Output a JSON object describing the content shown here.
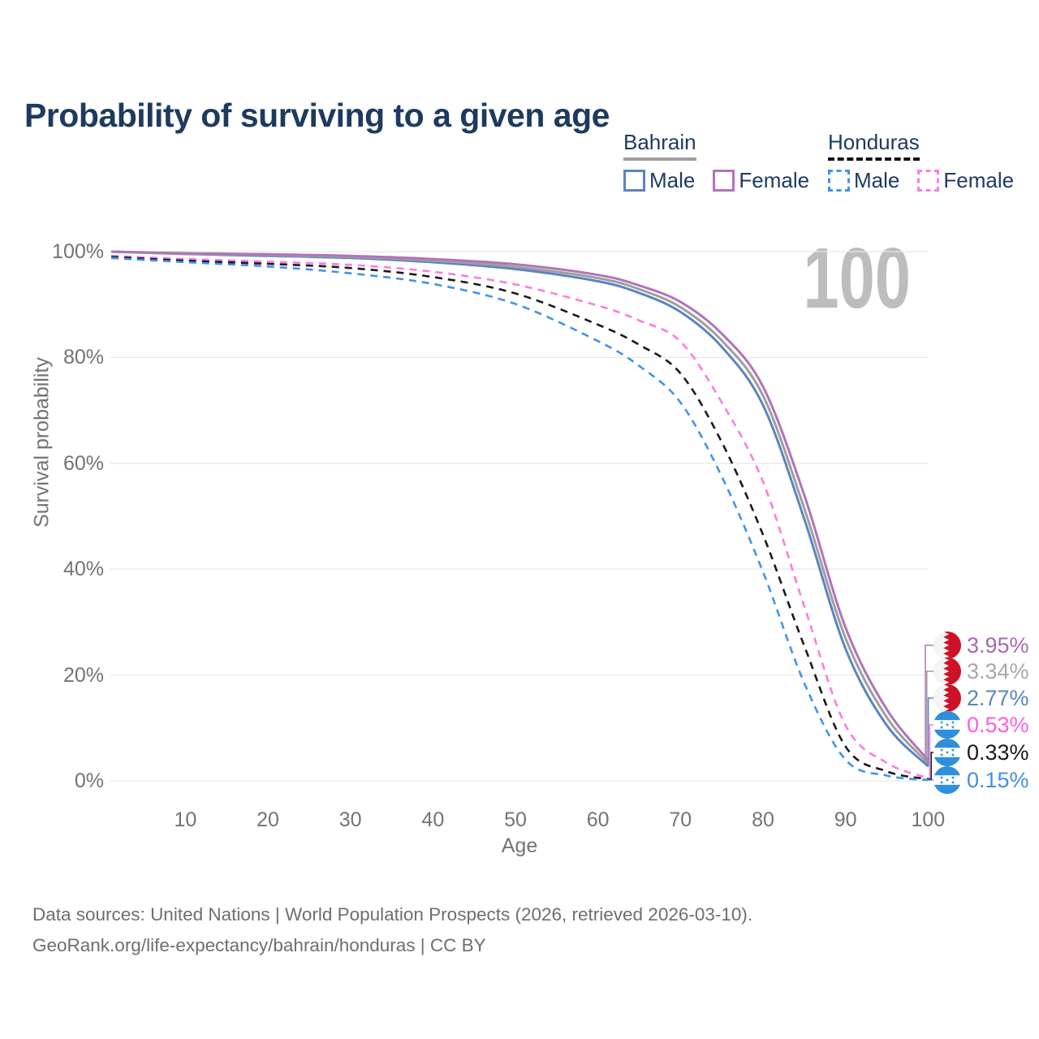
{
  "title": "Probability of surviving to a given age",
  "watermark": "100",
  "legend": {
    "groups": [
      {
        "name": "Bahrain",
        "line_style": "solid",
        "line_color": "#9e9e9e",
        "items": [
          {
            "label": "Male",
            "color": "#5b84bf",
            "style": "solid"
          },
          {
            "label": "Female",
            "color": "#b273b8",
            "style": "solid"
          }
        ]
      },
      {
        "name": "Honduras",
        "line_style": "dashed",
        "line_color": "#111111",
        "items": [
          {
            "label": "Male",
            "color": "#4292ea",
            "style": "dashed"
          },
          {
            "label": "Female",
            "color": "#fc7be2",
            "style": "dashed"
          }
        ]
      }
    ]
  },
  "chart_data": {
    "type": "line",
    "title": "Probability of surviving to a given age",
    "xlabel": "Age",
    "ylabel": "Survival probability",
    "xlim": [
      0,
      100
    ],
    "ylim": [
      0,
      100
    ],
    "grid": true,
    "x_ticks": [
      10,
      20,
      30,
      40,
      50,
      60,
      70,
      80,
      90,
      100
    ],
    "y_ticks": [
      {
        "value": 100,
        "label": "100%"
      },
      {
        "value": 80,
        "label": "80%"
      },
      {
        "value": 60,
        "label": "60%"
      },
      {
        "value": 40,
        "label": "40%"
      },
      {
        "value": 20,
        "label": "20%"
      },
      {
        "value": 0,
        "label": "0%"
      }
    ],
    "x": [
      0,
      10,
      20,
      30,
      40,
      50,
      60,
      65,
      70,
      75,
      80,
      85,
      90,
      95,
      100
    ],
    "series": [
      {
        "name": "Bahrain Female",
        "country": "Bahrain",
        "sex": "Female",
        "color": "#b273b8",
        "dash": "solid",
        "end_label": "3.95%",
        "end_label_color": "#a569b0",
        "values": [
          100,
          99.7,
          99.5,
          99.2,
          98.6,
          97.6,
          95.6,
          93.6,
          90.5,
          84.5,
          74.5,
          54.0,
          29.0,
          13.5,
          3.95
        ]
      },
      {
        "name": "Bahrain (both sexes)",
        "country": "Bahrain",
        "sex": "All",
        "color": "#9e9e9e",
        "dash": "solid",
        "end_label": "3.34%",
        "end_label_color": "#a8a8a8",
        "values": [
          100,
          99.6,
          99.35,
          99.0,
          98.3,
          97.1,
          95.0,
          92.9,
          89.5,
          83.2,
          72.8,
          51.5,
          27.0,
          12.0,
          3.34
        ]
      },
      {
        "name": "Bahrain Male",
        "country": "Bahrain",
        "sex": "Male",
        "color": "#5b84bf",
        "dash": "solid",
        "end_label": "2.77%",
        "end_label_color": "#5b84bf",
        "values": [
          100,
          99.55,
          99.2,
          98.8,
          98.0,
          96.7,
          94.4,
          92.2,
          88.6,
          82.0,
          71.0,
          49.5,
          25.0,
          10.5,
          2.77
        ]
      },
      {
        "name": "Honduras Female",
        "country": "Honduras",
        "sex": "Female",
        "color": "#fc7be2",
        "dash": "dashed",
        "end_label": "0.53%",
        "end_label_color": "#fb5fe0",
        "values": [
          99.2,
          98.6,
          98.1,
          97.5,
          96.2,
          93.8,
          89.8,
          87.0,
          83.0,
          71.5,
          56.5,
          33.0,
          10.5,
          3.4,
          0.53
        ]
      },
      {
        "name": "Honduras (both sexes)",
        "country": "Honduras",
        "sex": "All",
        "color": "#1a1a1a",
        "dash": "dashed",
        "end_label": "0.33%",
        "end_label_color": "#1a1a1a",
        "values": [
          99.0,
          98.3,
          97.7,
          96.9,
          95.2,
          92.1,
          86.2,
          82.4,
          77.0,
          64.0,
          46.5,
          25.5,
          6.5,
          1.8,
          0.33
        ]
      },
      {
        "name": "Honduras Male",
        "country": "Honduras",
        "sex": "Male",
        "color": "#4292ea",
        "dash": "dashed",
        "end_label": "0.15%",
        "end_label_color": "#4090e8",
        "values": [
          98.8,
          98.0,
          97.2,
          95.9,
          93.9,
          90.1,
          83.1,
          78.4,
          71.5,
          57.5,
          39.5,
          18.5,
          4.0,
          1.0,
          0.15
        ]
      }
    ]
  },
  "flags": {
    "bahrain_red": "#ce1126",
    "honduras_blue": "#2f8fdd"
  },
  "footer": {
    "line1": "Data sources: United Nations | World Population Prospects (2026, retrieved 2026-03-10).",
    "line2": "GeoRank.org/life-expectancy/bahrain/honduras | CC BY"
  }
}
